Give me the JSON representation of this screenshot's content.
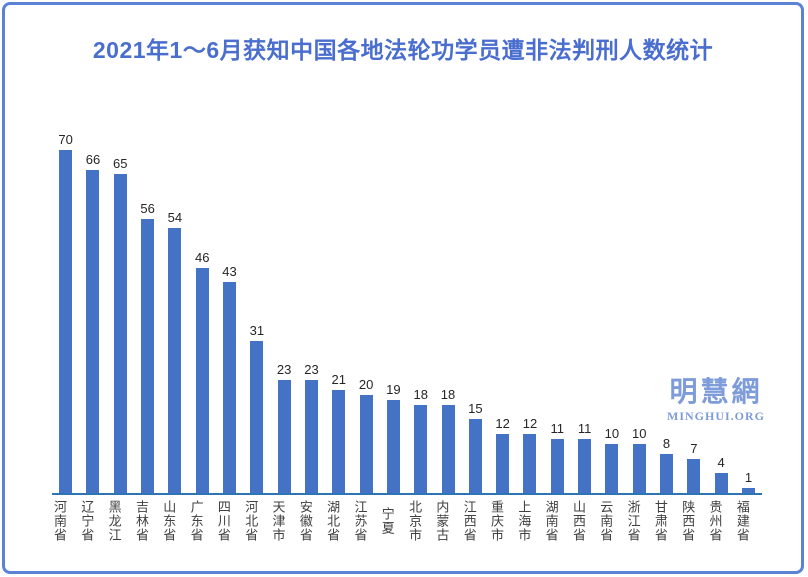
{
  "page": {
    "title": "2021年1～6月获知中国各地法轮功学员遭非法判刑人数统计"
  },
  "watermark": {
    "cn": "明慧網",
    "en": "MINGHUI.ORG"
  },
  "colors": {
    "border": "#5B82D6",
    "title": "#4A6ECF",
    "bar": "#4472C4",
    "axis_line": "#2E75B6",
    "watermark": "#7E9CD9"
  },
  "chart_data": {
    "type": "bar",
    "title": "2021年1～6月获知中国各地法轮功学员遭非法判刑人数统计",
    "categories": [
      "河南省",
      "辽宁省",
      "黑龙江",
      "吉林省",
      "山东省",
      "广东省",
      "四川省",
      "河北省",
      "天津市",
      "安徽省",
      "湖北省",
      "江苏省",
      "宁夏",
      "北京市",
      "内蒙古",
      "江西省",
      "重庆市",
      "上海市",
      "湖南省",
      "山西省",
      "云南省",
      "浙江省",
      "甘肃省",
      "陕西省",
      "贵州省",
      "福建省"
    ],
    "values": [
      70,
      66,
      65,
      56,
      54,
      46,
      43,
      31,
      23,
      23,
      21,
      20,
      19,
      18,
      18,
      15,
      12,
      12,
      11,
      11,
      10,
      10,
      8,
      7,
      4,
      1
    ],
    "xlabel": "",
    "ylabel": "",
    "ylim": [
      0,
      70
    ],
    "grid": false,
    "legend": false,
    "data_labels": true,
    "x_label_orientation": "vertical"
  }
}
